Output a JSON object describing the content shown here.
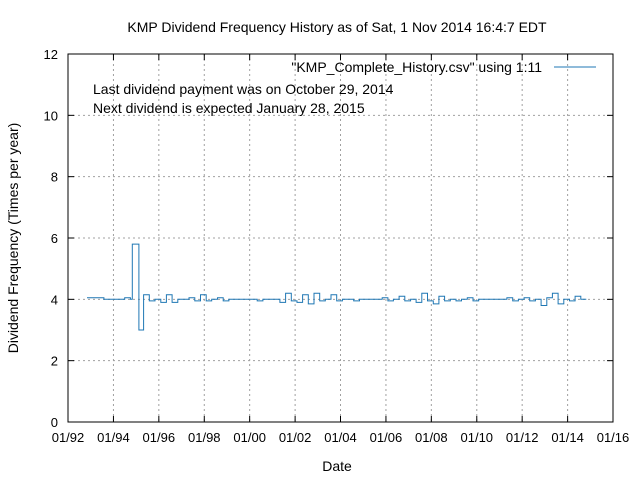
{
  "chart_data": {
    "type": "line",
    "title": "KMP Dividend Frequency History as of Sat, 1 Nov 2014 16:4:7 EDT",
    "xlabel": "Date",
    "ylabel": "Dividend Frequency (Times per year)",
    "ylim": [
      0,
      12
    ],
    "yticks": [
      0,
      2,
      4,
      6,
      8,
      10,
      12
    ],
    "xlim": [
      "1992-01-01",
      "2016-01-01"
    ],
    "xticks": [
      {
        "date": "1992-01-01",
        "label": "01/92"
      },
      {
        "date": "1994-01-01",
        "label": "01/94"
      },
      {
        "date": "1996-01-01",
        "label": "01/96"
      },
      {
        "date": "1998-01-01",
        "label": "01/98"
      },
      {
        "date": "2000-01-01",
        "label": "01/00"
      },
      {
        "date": "2002-01-01",
        "label": "01/02"
      },
      {
        "date": "2004-01-01",
        "label": "01/04"
      },
      {
        "date": "2006-01-01",
        "label": "01/06"
      },
      {
        "date": "2008-01-01",
        "label": "01/08"
      },
      {
        "date": "2010-01-01",
        "label": "01/10"
      },
      {
        "date": "2012-01-01",
        "label": "01/12"
      },
      {
        "date": "2014-01-01",
        "label": "01/14"
      },
      {
        "date": "2016-01-01",
        "label": "01/16"
      }
    ],
    "grid": true,
    "legend_position": "top-right",
    "annotations": [
      "Last dividend payment was on October 29, 2014",
      "Next dividend is expected January 28, 2015"
    ],
    "series": [
      {
        "name": "\"KMP_Complete_History.csv\" using 1:11",
        "color": "#1f77b4",
        "step": true,
        "points": [
          [
            "1992-11-01",
            4.05
          ],
          [
            "1993-08-01",
            4.0
          ],
          [
            "1994-07-01",
            4.05
          ],
          [
            "1994-10-01",
            4.0
          ],
          [
            "1994-11-01",
            5.8
          ],
          [
            "1995-02-15",
            3.0
          ],
          [
            "1995-05-01",
            4.15
          ],
          [
            "1995-08-01",
            3.95
          ],
          [
            "1995-11-01",
            4.0
          ],
          [
            "1996-02-01",
            3.9
          ],
          [
            "1996-05-01",
            4.15
          ],
          [
            "1996-08-01",
            3.9
          ],
          [
            "1996-11-01",
            4.0
          ],
          [
            "1997-02-01",
            4.0
          ],
          [
            "1997-05-01",
            4.05
          ],
          [
            "1997-08-01",
            3.95
          ],
          [
            "1997-11-01",
            4.15
          ],
          [
            "1998-02-01",
            3.95
          ],
          [
            "1998-05-01",
            4.0
          ],
          [
            "1998-08-01",
            4.05
          ],
          [
            "1998-11-01",
            3.95
          ],
          [
            "1999-02-01",
            4.0
          ],
          [
            "2000-02-01",
            4.0
          ],
          [
            "2000-05-01",
            3.95
          ],
          [
            "2000-08-01",
            4.0
          ],
          [
            "2001-02-01",
            4.0
          ],
          [
            "2001-05-01",
            3.9
          ],
          [
            "2001-08-01",
            4.2
          ],
          [
            "2001-11-01",
            3.95
          ],
          [
            "2002-02-01",
            3.9
          ],
          [
            "2002-05-01",
            4.15
          ],
          [
            "2002-08-01",
            3.85
          ],
          [
            "2002-11-01",
            4.2
          ],
          [
            "2003-02-01",
            3.95
          ],
          [
            "2003-05-01",
            4.0
          ],
          [
            "2003-08-01",
            4.15
          ],
          [
            "2003-11-01",
            3.95
          ],
          [
            "2004-02-01",
            4.0
          ],
          [
            "2004-08-01",
            3.95
          ],
          [
            "2004-11-01",
            4.0
          ],
          [
            "2005-05-01",
            4.0
          ],
          [
            "2005-08-01",
            4.0
          ],
          [
            "2005-11-01",
            4.05
          ],
          [
            "2006-02-01",
            3.95
          ],
          [
            "2006-05-01",
            4.0
          ],
          [
            "2006-08-01",
            4.1
          ],
          [
            "2006-11-01",
            3.95
          ],
          [
            "2007-02-01",
            4.0
          ],
          [
            "2007-05-01",
            3.9
          ],
          [
            "2007-08-01",
            4.2
          ],
          [
            "2007-11-01",
            3.95
          ],
          [
            "2008-02-01",
            3.85
          ],
          [
            "2008-05-01",
            4.1
          ],
          [
            "2008-08-01",
            3.95
          ],
          [
            "2008-11-01",
            4.0
          ],
          [
            "2009-02-01",
            3.95
          ],
          [
            "2009-05-01",
            4.0
          ],
          [
            "2009-08-01",
            4.05
          ],
          [
            "2009-11-01",
            3.95
          ],
          [
            "2010-02-01",
            4.0
          ],
          [
            "2011-02-01",
            4.0
          ],
          [
            "2011-05-01",
            4.05
          ],
          [
            "2011-08-01",
            3.95
          ],
          [
            "2011-11-01",
            4.0
          ],
          [
            "2012-02-01",
            4.05
          ],
          [
            "2012-05-01",
            3.95
          ],
          [
            "2012-08-01",
            4.0
          ],
          [
            "2012-11-01",
            3.8
          ],
          [
            "2013-02-01",
            4.05
          ],
          [
            "2013-05-01",
            4.2
          ],
          [
            "2013-08-01",
            3.85
          ],
          [
            "2013-11-01",
            4.0
          ],
          [
            "2014-02-01",
            3.95
          ],
          [
            "2014-05-01",
            4.1
          ],
          [
            "2014-08-01",
            4.0
          ],
          [
            "2014-10-29",
            4.0
          ]
        ]
      }
    ]
  }
}
